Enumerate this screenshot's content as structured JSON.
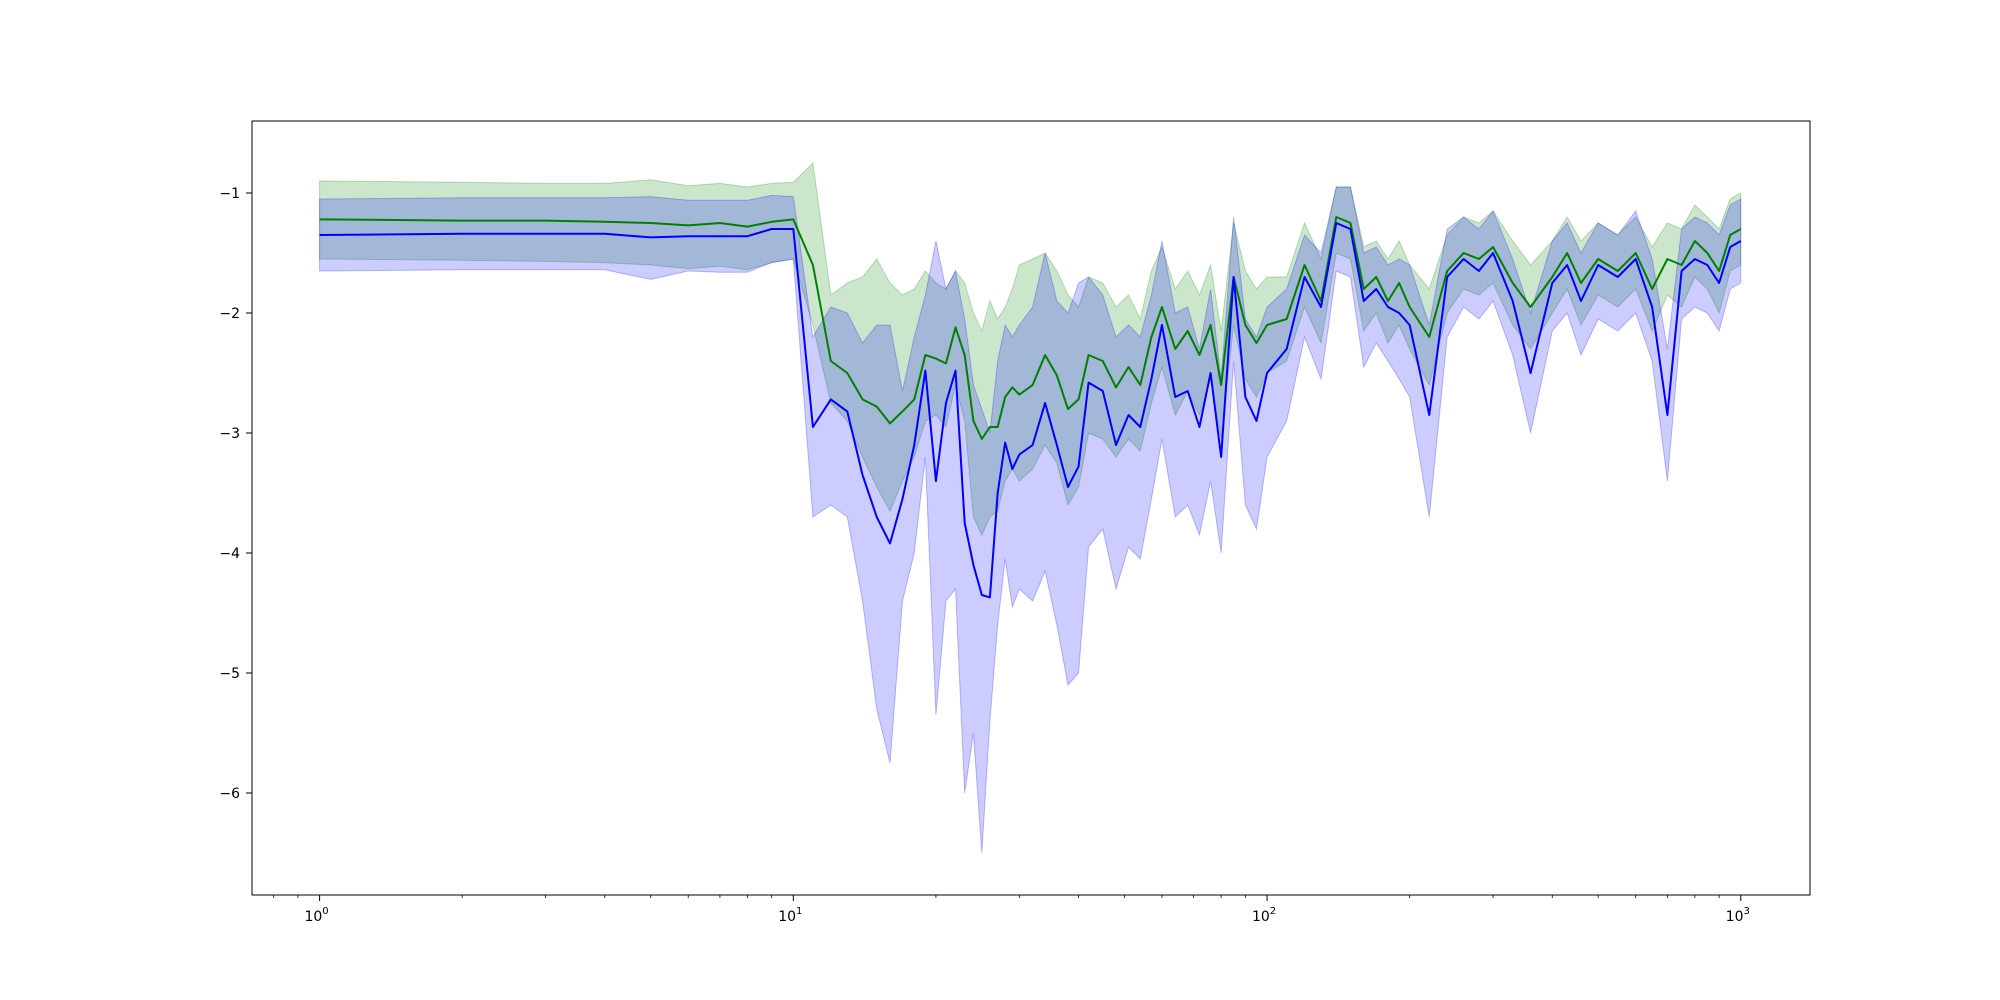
{
  "chart_data": {
    "type": "line",
    "title": "",
    "xlabel": "",
    "ylabel": "",
    "x_scale": "log",
    "xlim": [
      0.72,
      1400
    ],
    "ylim": [
      -6.85,
      -0.4
    ],
    "grid": false,
    "legend": "none",
    "x_ticks": [
      {
        "value": 1,
        "label": "10",
        "exp": "0"
      },
      {
        "value": 10,
        "label": "10",
        "exp": "1"
      },
      {
        "value": 100,
        "label": "10",
        "exp": "2"
      },
      {
        "value": 1000,
        "label": "10",
        "exp": "3"
      }
    ],
    "y_ticks": [
      -1,
      -2,
      -3,
      -4,
      -5,
      -6
    ],
    "y_tick_labels": [
      "−1",
      "−2",
      "−3",
      "−4",
      "−5",
      "−6"
    ],
    "colors": {
      "green": "#008000",
      "blue": "#0000ff",
      "green_band": "#008000",
      "blue_band": "#0000ff"
    },
    "band_opacity": 0.2,
    "series": [
      {
        "color": "green",
        "x": [
          1,
          2,
          3,
          4,
          5,
          6,
          7,
          8,
          9,
          10,
          11,
          12,
          13,
          14,
          15,
          16,
          17,
          18,
          19,
          20,
          21,
          22,
          23,
          24,
          25,
          26,
          27,
          28,
          29,
          30,
          32,
          34,
          36,
          38,
          40,
          42,
          45,
          48,
          51,
          54,
          57,
          60,
          64,
          68,
          72,
          76,
          80,
          85,
          90,
          95,
          100,
          110,
          120,
          130,
          140,
          150,
          160,
          170,
          180,
          190,
          200,
          220,
          240,
          260,
          280,
          300,
          330,
          360,
          400,
          430,
          460,
          500,
          550,
          600,
          650,
          700,
          750,
          800,
          850,
          900,
          950,
          1000
        ],
        "y": [
          -1.22,
          -1.23,
          -1.23,
          -1.24,
          -1.25,
          -1.27,
          -1.25,
          -1.28,
          -1.24,
          -1.22,
          -1.6,
          -2.4,
          -2.5,
          -2.72,
          -2.78,
          -2.92,
          -2.82,
          -2.72,
          -2.35,
          -2.38,
          -2.42,
          -2.12,
          -2.35,
          -2.9,
          -3.05,
          -2.95,
          -2.95,
          -2.7,
          -2.62,
          -2.68,
          -2.6,
          -2.35,
          -2.52,
          -2.8,
          -2.72,
          -2.35,
          -2.4,
          -2.62,
          -2.45,
          -2.6,
          -2.2,
          -1.95,
          -2.3,
          -2.15,
          -2.35,
          -2.1,
          -2.6,
          -1.7,
          -2.1,
          -2.25,
          -2.1,
          -2.05,
          -1.6,
          -1.9,
          -1.2,
          -1.25,
          -1.8,
          -1.7,
          -1.9,
          -1.75,
          -1.95,
          -2.2,
          -1.65,
          -1.5,
          -1.55,
          -1.45,
          -1.75,
          -1.95,
          -1.7,
          -1.5,
          -1.75,
          -1.55,
          -1.65,
          -1.5,
          -1.8,
          -1.55,
          -1.6,
          -1.4,
          -1.5,
          -1.65,
          -1.35,
          -1.3
        ],
        "lower": [
          -1.55,
          -1.56,
          -1.57,
          -1.58,
          -1.6,
          -1.63,
          -1.61,
          -1.64,
          -1.58,
          -1.55,
          -2.1,
          -2.75,
          -2.9,
          -3.2,
          -3.45,
          -3.65,
          -3.4,
          -3.2,
          -2.9,
          -2.85,
          -2.95,
          -2.6,
          -2.9,
          -3.7,
          -3.85,
          -3.7,
          -3.65,
          -3.4,
          -3.3,
          -3.4,
          -3.3,
          -3.1,
          -3.25,
          -3.6,
          -3.45,
          -3.0,
          -3.05,
          -3.2,
          -3.05,
          -3.15,
          -2.75,
          -2.45,
          -2.85,
          -2.65,
          -2.85,
          -2.55,
          -3.05,
          -2.1,
          -2.55,
          -2.7,
          -2.5,
          -2.4,
          -1.95,
          -2.25,
          -1.5,
          -1.55,
          -2.15,
          -2.0,
          -2.25,
          -2.1,
          -2.3,
          -2.6,
          -2.0,
          -1.8,
          -1.85,
          -1.75,
          -2.1,
          -2.3,
          -2.0,
          -1.8,
          -2.1,
          -1.85,
          -1.95,
          -1.8,
          -2.15,
          -1.85,
          -1.95,
          -1.7,
          -1.8,
          -2.0,
          -1.65,
          -1.6
        ],
        "upper": [
          -0.9,
          -0.91,
          -0.92,
          -0.92,
          -0.89,
          -0.94,
          -0.92,
          -0.95,
          -0.92,
          -0.91,
          -0.75,
          -1.85,
          -1.75,
          -1.7,
          -1.55,
          -1.75,
          -1.85,
          -1.8,
          -1.65,
          -1.75,
          -1.8,
          -1.65,
          -1.75,
          -2.0,
          -2.15,
          -1.9,
          -2.05,
          -1.95,
          -1.8,
          -1.6,
          -1.55,
          -1.5,
          -1.65,
          -1.85,
          -1.95,
          -1.7,
          -1.75,
          -1.95,
          -1.85,
          -2.05,
          -1.65,
          -1.45,
          -1.8,
          -1.65,
          -1.85,
          -1.6,
          -2.15,
          -1.25,
          -1.65,
          -1.8,
          -1.7,
          -1.7,
          -1.25,
          -1.55,
          -0.95,
          -0.95,
          -1.45,
          -1.4,
          -1.55,
          -1.4,
          -1.6,
          -1.8,
          -1.35,
          -1.2,
          -1.25,
          -1.15,
          -1.4,
          -1.6,
          -1.4,
          -1.2,
          -1.4,
          -1.25,
          -1.35,
          -1.2,
          -1.45,
          -1.25,
          -1.3,
          -1.1,
          -1.2,
          -1.3,
          -1.05,
          -1.0
        ]
      },
      {
        "color": "blue",
        "x": [
          1,
          2,
          3,
          4,
          5,
          6,
          7,
          8,
          9,
          10,
          11,
          12,
          13,
          14,
          15,
          16,
          17,
          18,
          19,
          20,
          21,
          22,
          23,
          24,
          25,
          26,
          27,
          28,
          29,
          30,
          32,
          34,
          36,
          38,
          40,
          42,
          45,
          48,
          51,
          54,
          57,
          60,
          64,
          68,
          72,
          76,
          80,
          85,
          90,
          95,
          100,
          110,
          120,
          130,
          140,
          150,
          160,
          170,
          180,
          190,
          200,
          220,
          240,
          260,
          280,
          300,
          330,
          360,
          400,
          430,
          460,
          500,
          550,
          600,
          650,
          700,
          750,
          800,
          850,
          900,
          950,
          1000
        ],
        "y": [
          -1.35,
          -1.34,
          -1.34,
          -1.34,
          -1.37,
          -1.36,
          -1.36,
          -1.36,
          -1.3,
          -1.3,
          -2.95,
          -2.72,
          -2.82,
          -3.35,
          -3.7,
          -3.92,
          -3.55,
          -3.1,
          -2.48,
          -3.4,
          -2.75,
          -2.48,
          -3.75,
          -4.1,
          -4.35,
          -4.37,
          -3.5,
          -3.08,
          -3.3,
          -3.18,
          -3.1,
          -2.75,
          -3.1,
          -3.45,
          -3.28,
          -2.58,
          -2.65,
          -3.1,
          -2.85,
          -2.95,
          -2.55,
          -2.1,
          -2.7,
          -2.65,
          -2.95,
          -2.5,
          -3.2,
          -1.7,
          -2.7,
          -2.9,
          -2.5,
          -2.3,
          -1.7,
          -1.95,
          -1.25,
          -1.3,
          -1.9,
          -1.8,
          -1.95,
          -2.0,
          -2.1,
          -2.85,
          -1.7,
          -1.55,
          -1.65,
          -1.5,
          -1.9,
          -2.5,
          -1.75,
          -1.6,
          -1.9,
          -1.6,
          -1.7,
          -1.55,
          -1.95,
          -2.85,
          -1.65,
          -1.55,
          -1.6,
          -1.75,
          -1.45,
          -1.4
        ],
        "lower": [
          -1.65,
          -1.64,
          -1.64,
          -1.64,
          -1.72,
          -1.65,
          -1.66,
          -1.66,
          -1.58,
          -1.55,
          -3.7,
          -3.6,
          -3.7,
          -4.4,
          -5.3,
          -5.75,
          -4.4,
          -4.0,
          -3.2,
          -5.35,
          -4.4,
          -4.3,
          -6.0,
          -5.5,
          -6.5,
          -5.4,
          -4.6,
          -4.05,
          -4.45,
          -4.3,
          -4.4,
          -4.15,
          -4.6,
          -5.1,
          -5.0,
          -3.95,
          -3.8,
          -4.3,
          -3.95,
          -4.05,
          -3.55,
          -3.05,
          -3.7,
          -3.6,
          -3.85,
          -3.4,
          -4.0,
          -2.4,
          -3.6,
          -3.8,
          -3.2,
          -2.9,
          -2.2,
          -2.55,
          -1.65,
          -1.7,
          -2.45,
          -2.25,
          -2.4,
          -2.55,
          -2.7,
          -3.7,
          -2.2,
          -1.95,
          -2.05,
          -1.9,
          -2.35,
          -3.0,
          -2.15,
          -2.0,
          -2.35,
          -2.05,
          -2.15,
          -2.0,
          -2.4,
          -3.4,
          -2.05,
          -1.95,
          -2.0,
          -2.15,
          -1.8,
          -1.75
        ],
        "upper": [
          -1.05,
          -1.04,
          -1.04,
          -1.04,
          -1.03,
          -1.06,
          -1.06,
          -1.06,
          -1.02,
          -1.03,
          -2.2,
          -1.95,
          -2.0,
          -2.25,
          -2.1,
          -2.1,
          -2.65,
          -2.2,
          -1.85,
          -1.4,
          -1.8,
          -1.65,
          -2.05,
          -2.6,
          -2.8,
          -3.0,
          -2.4,
          -2.1,
          -2.2,
          -2.1,
          -1.95,
          -1.5,
          -1.9,
          -2.0,
          -1.75,
          -1.7,
          -1.85,
          -2.2,
          -2.1,
          -2.2,
          -1.85,
          -1.4,
          -2.0,
          -1.95,
          -2.3,
          -1.8,
          -2.55,
          -1.2,
          -2.05,
          -2.2,
          -1.95,
          -1.8,
          -1.35,
          -1.5,
          -0.95,
          -0.95,
          -1.5,
          -1.45,
          -1.6,
          -1.55,
          -1.6,
          -2.1,
          -1.3,
          -1.2,
          -1.3,
          -1.15,
          -1.55,
          -2.0,
          -1.4,
          -1.25,
          -1.5,
          -1.25,
          -1.35,
          -1.15,
          -1.55,
          -2.3,
          -1.3,
          -1.2,
          -1.25,
          -1.35,
          -1.1,
          -1.05
        ]
      }
    ]
  }
}
